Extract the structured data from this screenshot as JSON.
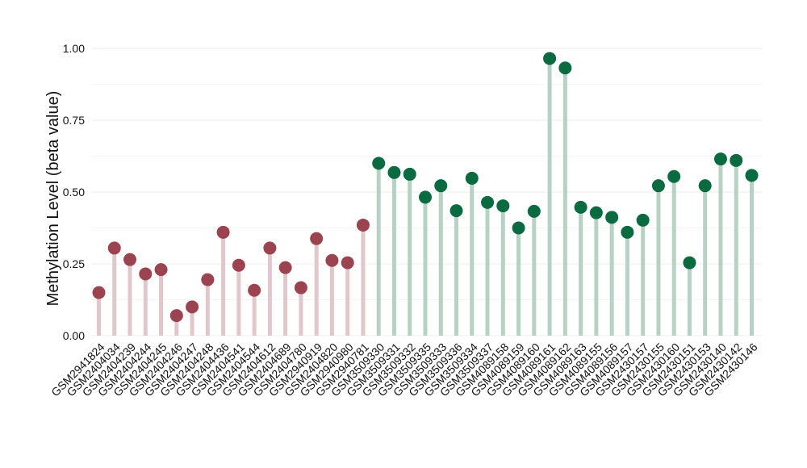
{
  "chart_data": {
    "type": "lollipop",
    "ylabel": "Methylation Level (beta value)",
    "xlabel": "",
    "ylim": [
      0,
      1.0
    ],
    "yticks": [
      "0.00",
      "0.25",
      "0.50",
      "0.75",
      "1.00"
    ],
    "grid": true,
    "colors": {
      "group1_point": "#9c4350",
      "group1_stem": "#e1c6cb",
      "group2_point": "#0a6b41",
      "group2_stem": "#b5d2c5",
      "grid": "#ececec"
    },
    "categories": [
      "GSM2941824",
      "GSM2404034",
      "GSM2404239",
      "GSM2404244",
      "GSM2404245",
      "GSM2404246",
      "GSM2404247",
      "GSM2404248",
      "GSM2404436",
      "GSM2404541",
      "GSM2404544",
      "GSM2404612",
      "GSM2404689",
      "GSM2404780",
      "GSM2940919",
      "GSM2404820",
      "GSM2940980",
      "GSM2940781",
      "GSM3509330",
      "GSM3509331",
      "GSM3509332",
      "GSM3509335",
      "GSM3509333",
      "GSM3509336",
      "GSM3509334",
      "GSM3509337",
      "GSM4089158",
      "GSM4089159",
      "GSM4089160",
      "GSM4089161",
      "GSM4089162",
      "GSM4089163",
      "GSM4089155",
      "GSM4089156",
      "GSM4089157",
      "GSM2430157",
      "GSM2430155",
      "GSM2430160",
      "GSM2430151",
      "GSM2430153",
      "GSM2430140",
      "GSM2430142",
      "GSM2430146"
    ],
    "values": [
      0.15,
      0.305,
      0.265,
      0.215,
      0.23,
      0.07,
      0.1,
      0.195,
      0.36,
      0.245,
      0.158,
      0.305,
      0.237,
      0.167,
      0.338,
      0.262,
      0.254,
      0.385,
      0.6,
      0.568,
      0.562,
      0.482,
      0.522,
      0.435,
      0.548,
      0.464,
      0.452,
      0.375,
      0.433,
      0.965,
      0.932,
      0.447,
      0.428,
      0.412,
      0.36,
      0.402,
      0.522,
      0.554,
      0.254,
      0.522,
      0.615,
      0.61,
      0.558
    ],
    "groups": [
      1,
      1,
      1,
      1,
      1,
      1,
      1,
      1,
      1,
      1,
      1,
      1,
      1,
      1,
      1,
      1,
      1,
      1,
      2,
      2,
      2,
      2,
      2,
      2,
      2,
      2,
      2,
      2,
      2,
      2,
      2,
      2,
      2,
      2,
      2,
      2,
      2,
      2,
      2,
      2,
      2,
      2,
      2
    ]
  }
}
